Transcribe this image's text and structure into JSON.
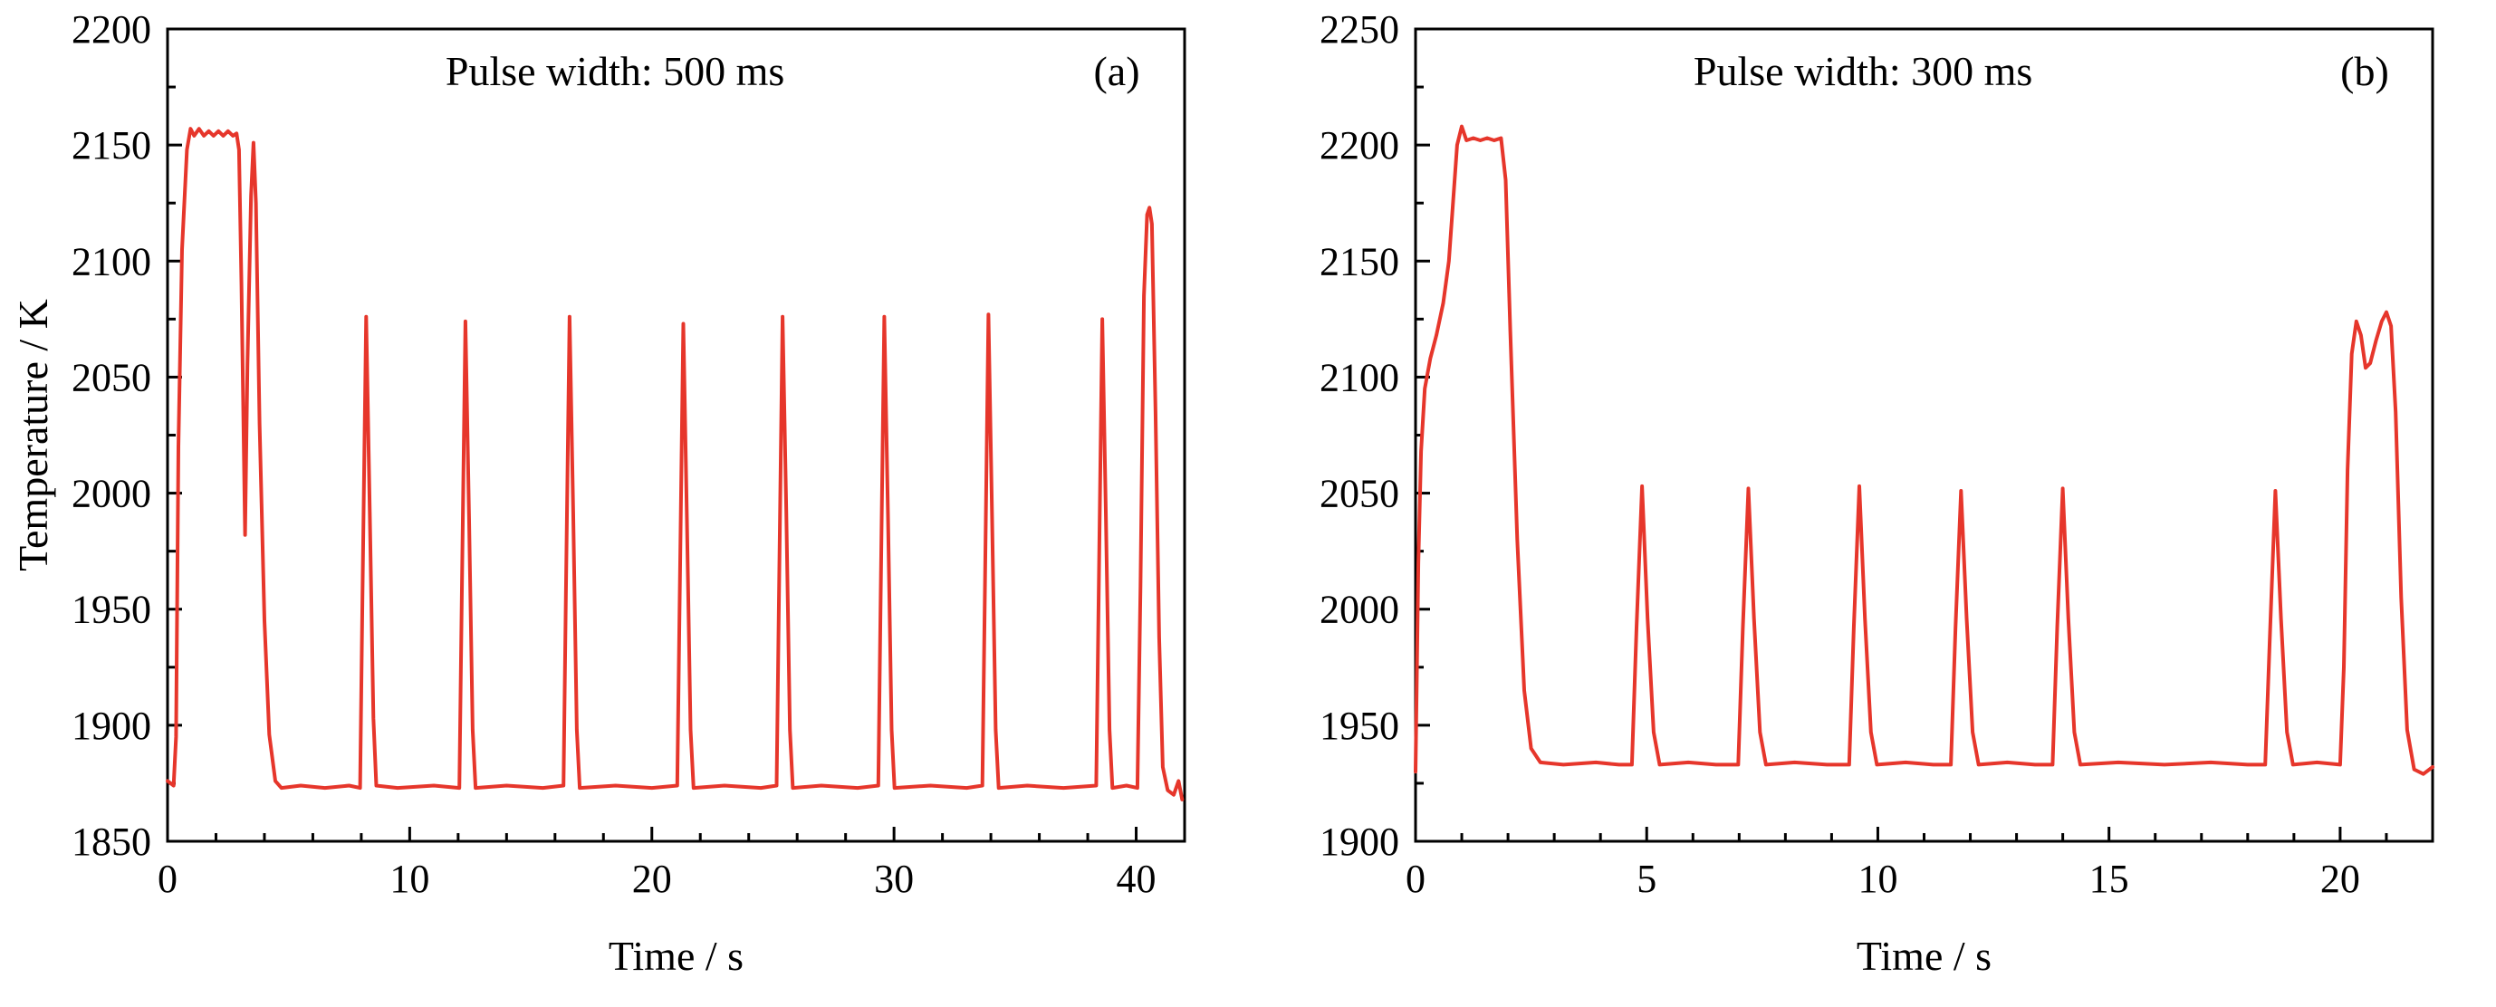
{
  "page": {
    "background": "#ffffff",
    "axis_color": "#000000"
  },
  "chart_data": [
    {
      "type": "line",
      "panel_label": "(a)",
      "annotation": "Pulse width: 500 ms",
      "xlabel": "Time / s",
      "ylabel": "Temperature / K",
      "xlim": [
        0,
        42
      ],
      "ylim": [
        1850,
        2200
      ],
      "xticks": [
        0,
        10,
        20,
        30,
        40
      ],
      "yticks": [
        1850,
        1900,
        1950,
        2000,
        2050,
        2100,
        2150,
        2200
      ],
      "x_minor_step": 2,
      "y_minor_step": 25,
      "grid": false,
      "legend": false,
      "line_color": "#e6362b",
      "series": [
        {
          "name": "temperature",
          "points": [
            [
              0,
              1876
            ],
            [
              0.25,
              1874
            ],
            [
              0.35,
              1895
            ],
            [
              0.45,
              2020
            ],
            [
              0.6,
              2105
            ],
            [
              0.8,
              2148
            ],
            [
              0.95,
              2157
            ],
            [
              1.1,
              2154
            ],
            [
              1.3,
              2157
            ],
            [
              1.5,
              2154
            ],
            [
              1.7,
              2156
            ],
            [
              1.9,
              2154
            ],
            [
              2.1,
              2156
            ],
            [
              2.3,
              2154
            ],
            [
              2.5,
              2156
            ],
            [
              2.7,
              2154
            ],
            [
              2.85,
              2155
            ],
            [
              2.95,
              2148
            ],
            [
              3.05,
              2090
            ],
            [
              3.2,
              1982
            ],
            [
              3.3,
              2055
            ],
            [
              3.45,
              2128
            ],
            [
              3.55,
              2151
            ],
            [
              3.65,
              2125
            ],
            [
              3.8,
              2030
            ],
            [
              4.0,
              1945
            ],
            [
              4.2,
              1896
            ],
            [
              4.45,
              1876
            ],
            [
              4.7,
              1873
            ],
            [
              5.5,
              1874
            ],
            [
              6.5,
              1873
            ],
            [
              7.5,
              1874
            ],
            [
              7.95,
              1873
            ],
            [
              8.05,
              1955
            ],
            [
              8.2,
              2076
            ],
            [
              8.35,
              1992
            ],
            [
              8.5,
              1903
            ],
            [
              8.62,
              1874
            ],
            [
              9.5,
              1873
            ],
            [
              11,
              1874
            ],
            [
              12.05,
              1873
            ],
            [
              12.15,
              1955
            ],
            [
              12.3,
              2074
            ],
            [
              12.45,
              1990
            ],
            [
              12.6,
              1898
            ],
            [
              12.72,
              1873
            ],
            [
              14,
              1874
            ],
            [
              15.5,
              1873
            ],
            [
              16.35,
              1874
            ],
            [
              16.45,
              1955
            ],
            [
              16.6,
              2076
            ],
            [
              16.75,
              1992
            ],
            [
              16.9,
              1898
            ],
            [
              17.02,
              1873
            ],
            [
              18.5,
              1874
            ],
            [
              20,
              1873
            ],
            [
              21.05,
              1874
            ],
            [
              21.15,
              1955
            ],
            [
              21.3,
              2073
            ],
            [
              21.45,
              1988
            ],
            [
              21.6,
              1898
            ],
            [
              21.72,
              1873
            ],
            [
              23,
              1874
            ],
            [
              24.5,
              1873
            ],
            [
              25.15,
              1874
            ],
            [
              25.25,
              1955
            ],
            [
              25.4,
              2076
            ],
            [
              25.55,
              1992
            ],
            [
              25.7,
              1898
            ],
            [
              25.82,
              1873
            ],
            [
              27,
              1874
            ],
            [
              28.5,
              1873
            ],
            [
              29.35,
              1874
            ],
            [
              29.45,
              1955
            ],
            [
              29.6,
              2076
            ],
            [
              29.75,
              1990
            ],
            [
              29.9,
              1898
            ],
            [
              30.02,
              1873
            ],
            [
              31.5,
              1874
            ],
            [
              33,
              1873
            ],
            [
              33.65,
              1874
            ],
            [
              33.75,
              1955
            ],
            [
              33.9,
              2077
            ],
            [
              34.05,
              1990
            ],
            [
              34.2,
              1898
            ],
            [
              34.32,
              1873
            ],
            [
              35.5,
              1874
            ],
            [
              37,
              1873
            ],
            [
              38.35,
              1874
            ],
            [
              38.45,
              1955
            ],
            [
              38.6,
              2075
            ],
            [
              38.75,
              1990
            ],
            [
              38.9,
              1898
            ],
            [
              39.02,
              1873
            ],
            [
              39.6,
              1874
            ],
            [
              40.05,
              1873
            ],
            [
              40.18,
              1960
            ],
            [
              40.32,
              2085
            ],
            [
              40.45,
              2120
            ],
            [
              40.55,
              2123
            ],
            [
              40.65,
              2116
            ],
            [
              40.8,
              2035
            ],
            [
              40.95,
              1938
            ],
            [
              41.1,
              1882
            ],
            [
              41.3,
              1872
            ],
            [
              41.55,
              1870
            ],
            [
              41.75,
              1876
            ],
            [
              41.9,
              1868
            ]
          ]
        }
      ]
    },
    {
      "type": "line",
      "panel_label": "(b)",
      "annotation": "Pulse width: 300 ms",
      "xlabel": "Time / s",
      "ylabel": "",
      "xlim": [
        0,
        22
      ],
      "ylim": [
        1900,
        2250
      ],
      "xticks": [
        0,
        5,
        10,
        15,
        20
      ],
      "yticks": [
        1900,
        1950,
        2000,
        2050,
        2100,
        2150,
        2200,
        2250
      ],
      "x_minor_step": 1,
      "y_minor_step": 25,
      "grid": false,
      "legend": false,
      "line_color": "#e6362b",
      "series": [
        {
          "name": "temperature",
          "points": [
            [
              0,
              1930
            ],
            [
              0.06,
              2020
            ],
            [
              0.12,
              2068
            ],
            [
              0.2,
              2095
            ],
            [
              0.32,
              2108
            ],
            [
              0.45,
              2118
            ],
            [
              0.6,
              2132
            ],
            [
              0.72,
              2150
            ],
            [
              0.82,
              2178
            ],
            [
              0.9,
              2200
            ],
            [
              1.0,
              2208
            ],
            [
              1.1,
              2202
            ],
            [
              1.25,
              2203
            ],
            [
              1.4,
              2202
            ],
            [
              1.55,
              2203
            ],
            [
              1.7,
              2202
            ],
            [
              1.85,
              2203
            ],
            [
              1.95,
              2185
            ],
            [
              2.05,
              2120
            ],
            [
              2.2,
              2030
            ],
            [
              2.35,
              1965
            ],
            [
              2.5,
              1940
            ],
            [
              2.7,
              1934
            ],
            [
              3.2,
              1933
            ],
            [
              3.9,
              1934
            ],
            [
              4.4,
              1933
            ],
            [
              4.68,
              1933
            ],
            [
              4.78,
              1992
            ],
            [
              4.9,
              2053
            ],
            [
              5.02,
              1996
            ],
            [
              5.15,
              1947
            ],
            [
              5.28,
              1933
            ],
            [
              5.9,
              1934
            ],
            [
              6.5,
              1933
            ],
            [
              6.98,
              1933
            ],
            [
              7.08,
              1992
            ],
            [
              7.2,
              2052
            ],
            [
              7.32,
              1996
            ],
            [
              7.45,
              1947
            ],
            [
              7.58,
              1933
            ],
            [
              8.2,
              1934
            ],
            [
              8.9,
              1933
            ],
            [
              9.38,
              1933
            ],
            [
              9.48,
              1992
            ],
            [
              9.6,
              2053
            ],
            [
              9.72,
              1996
            ],
            [
              9.85,
              1947
            ],
            [
              9.98,
              1933
            ],
            [
              10.6,
              1934
            ],
            [
              11.2,
              1933
            ],
            [
              11.58,
              1933
            ],
            [
              11.68,
              1992
            ],
            [
              11.8,
              2051
            ],
            [
              11.92,
              1996
            ],
            [
              12.05,
              1947
            ],
            [
              12.18,
              1933
            ],
            [
              12.8,
              1934
            ],
            [
              13.4,
              1933
            ],
            [
              13.78,
              1933
            ],
            [
              13.88,
              1992
            ],
            [
              14.0,
              2052
            ],
            [
              14.12,
              1996
            ],
            [
              14.25,
              1947
            ],
            [
              14.38,
              1933
            ],
            [
              15.2,
              1934
            ],
            [
              16.2,
              1933
            ],
            [
              17.2,
              1934
            ],
            [
              18.0,
              1933
            ],
            [
              18.38,
              1933
            ],
            [
              18.48,
              1988
            ],
            [
              18.6,
              2051
            ],
            [
              18.72,
              1996
            ],
            [
              18.85,
              1947
            ],
            [
              18.98,
              1933
            ],
            [
              19.5,
              1934
            ],
            [
              20.0,
              1933
            ],
            [
              20.08,
              1975
            ],
            [
              20.16,
              2060
            ],
            [
              20.25,
              2110
            ],
            [
              20.35,
              2124
            ],
            [
              20.45,
              2118
            ],
            [
              20.55,
              2104
            ],
            [
              20.65,
              2106
            ],
            [
              20.78,
              2116
            ],
            [
              20.9,
              2124
            ],
            [
              21.0,
              2128
            ],
            [
              21.1,
              2122
            ],
            [
              21.2,
              2085
            ],
            [
              21.32,
              2005
            ],
            [
              21.45,
              1948
            ],
            [
              21.6,
              1931
            ],
            [
              21.8,
              1929
            ],
            [
              22,
              1932
            ]
          ]
        }
      ]
    }
  ]
}
